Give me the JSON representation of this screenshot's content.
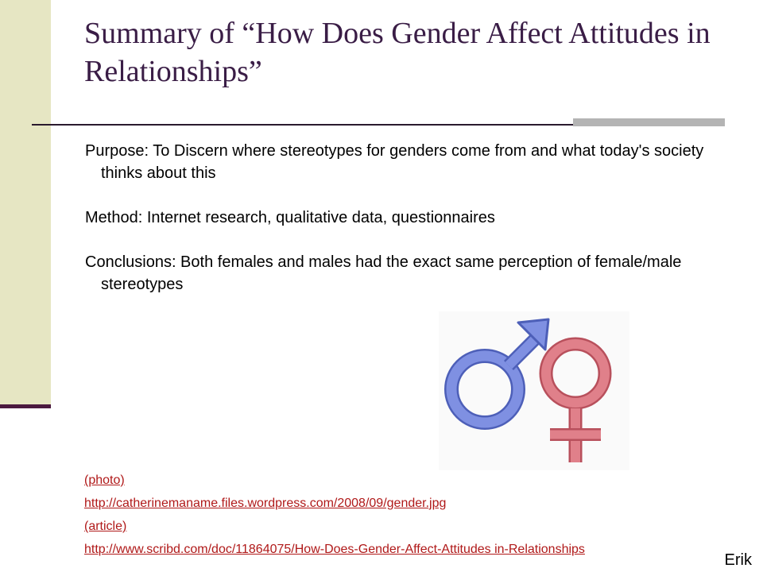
{
  "slide": {
    "title": "Summary of  “How Does Gender Affect Attitudes in Relationships”",
    "paragraphs": [
      "Purpose: To Discern where stereotypes for genders come from and what today's society thinks about this",
      "Method: Internet research, qualitative data, questionnaires",
      "Conclusions: Both females and males had the exact same perception of female/male stereotypes"
    ],
    "links": [
      "(photo)",
      "http://catherinemaname.files.wordpress.com/2008/09/gender.jpg",
      "(article)",
      "http://www.scribd.com/doc/11864075/How-Does-Gender-Affect-Attitudes in-Relationships"
    ],
    "author": "Erik"
  },
  "image": {
    "icons": [
      "male-symbol-icon",
      "female-symbol-icon"
    ],
    "colors": {
      "male": "#6d7fd6",
      "female": "#d66d78"
    }
  },
  "colors": {
    "title": "#3a1d46",
    "link": "#b01919",
    "sidebar": "#e6e6c3",
    "accent_bar": "#b4b4b4",
    "dark_line": "#4b1a3f"
  }
}
